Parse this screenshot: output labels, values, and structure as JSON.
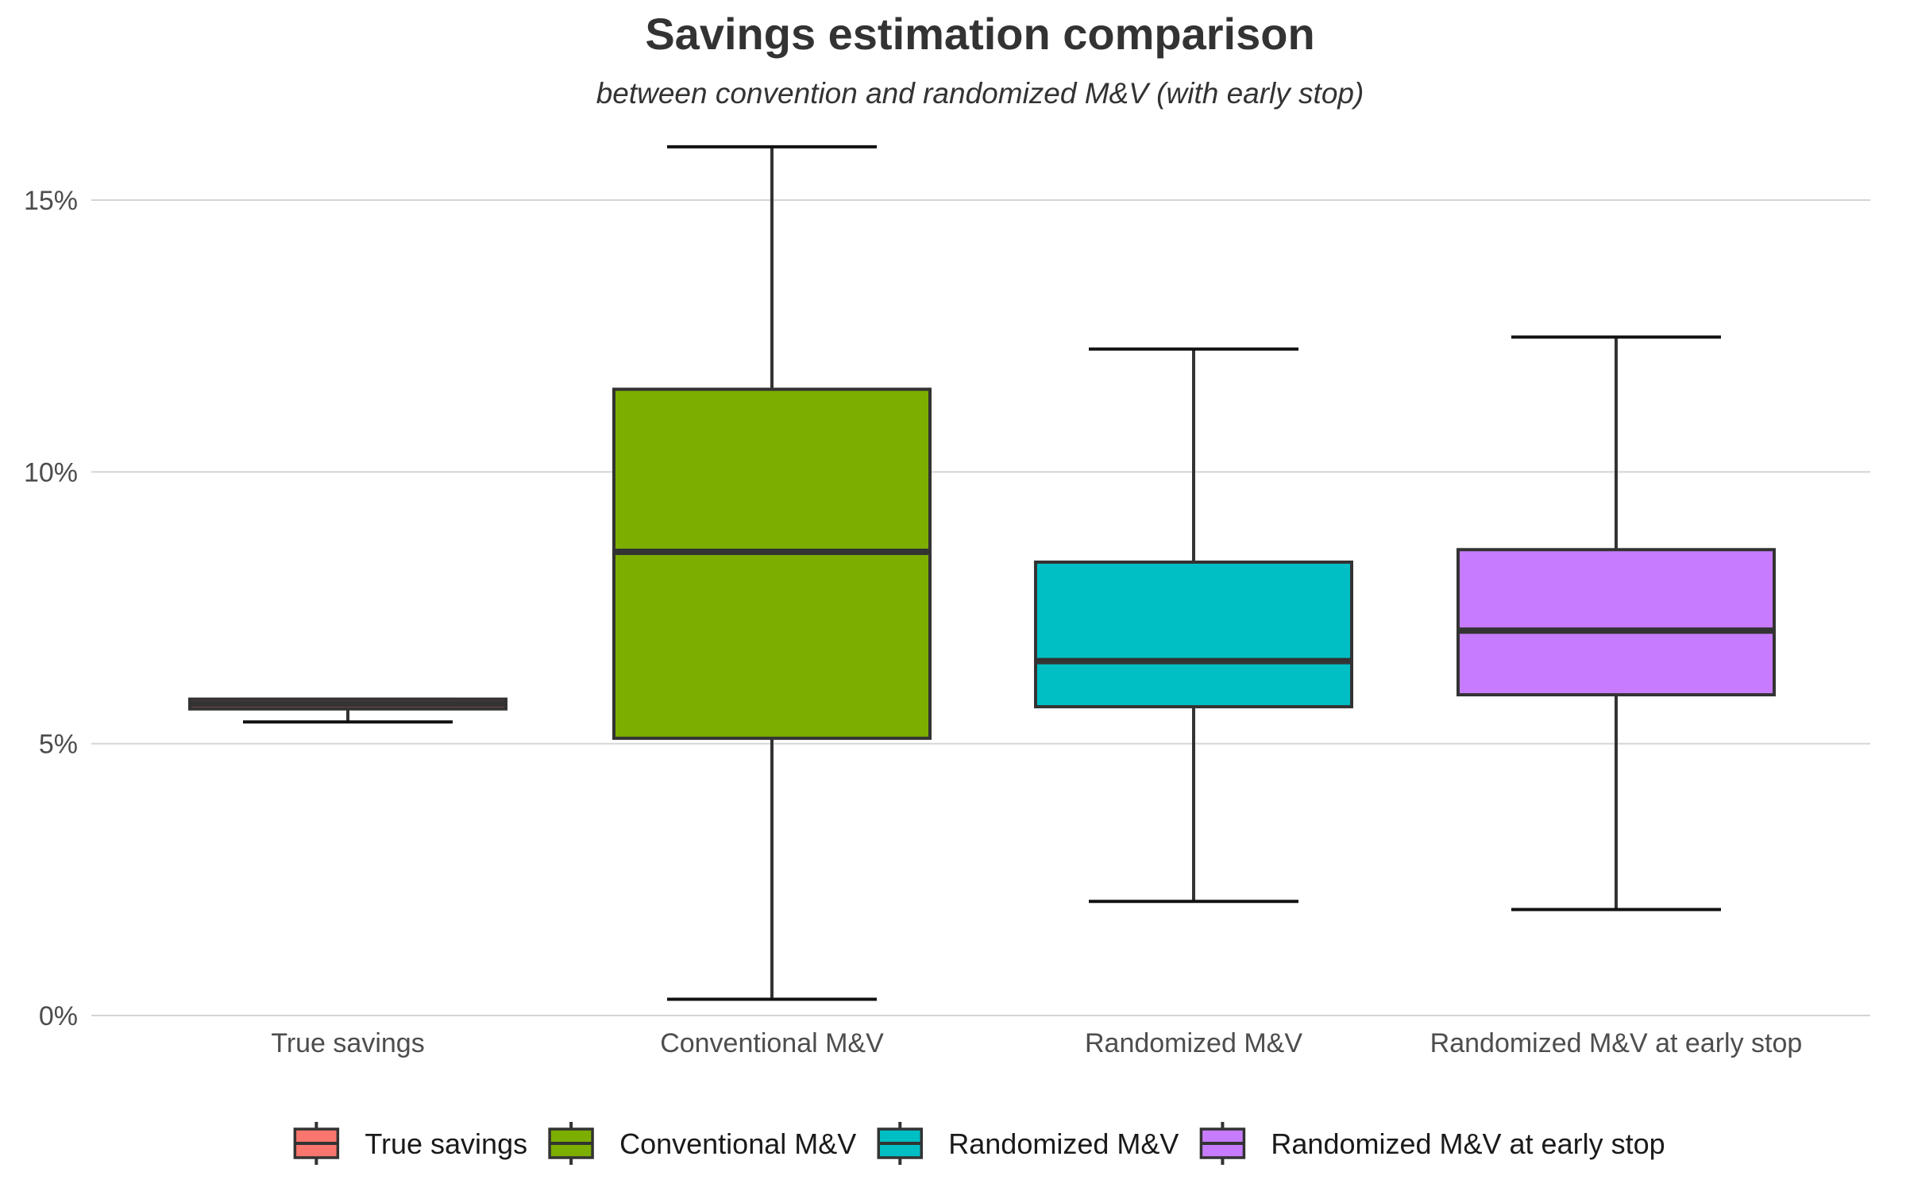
{
  "chart_data": {
    "type": "boxplot",
    "title": "Savings estimation comparison",
    "subtitle": "between convention and randomized M&V (with early stop)",
    "xlabel": "",
    "ylabel": "",
    "ylim": [
      0,
      16
    ],
    "y_ticks": [
      {
        "value": 0,
        "label": "0%"
      },
      {
        "value": 5,
        "label": "5%"
      },
      {
        "value": 10,
        "label": "10%"
      },
      {
        "value": 15,
        "label": "15%"
      }
    ],
    "grid": true,
    "legend_position": "bottom",
    "categories": [
      "True savings",
      "Conventional M&V",
      "Randomized M&V",
      "Randomized M&V at early stop"
    ],
    "series": [
      {
        "name": "True savings",
        "color": "#F8766D",
        "min": 5.4,
        "q1": 5.64,
        "median": 5.73,
        "q3": 5.82,
        "max": 5.82
      },
      {
        "name": "Conventional M&V",
        "color": "#7CAE00",
        "min": 0.3,
        "q1": 5.1,
        "median": 8.53,
        "q3": 11.52,
        "max": 15.98
      },
      {
        "name": "Randomized M&V",
        "color": "#00BFC4",
        "min": 2.1,
        "q1": 5.68,
        "median": 6.52,
        "q3": 8.34,
        "max": 12.26
      },
      {
        "name": "Randomized M&V at early stop",
        "color": "#C77CFF",
        "min": 1.95,
        "q1": 5.9,
        "median": 7.08,
        "q3": 8.57,
        "max": 12.48
      }
    ]
  }
}
